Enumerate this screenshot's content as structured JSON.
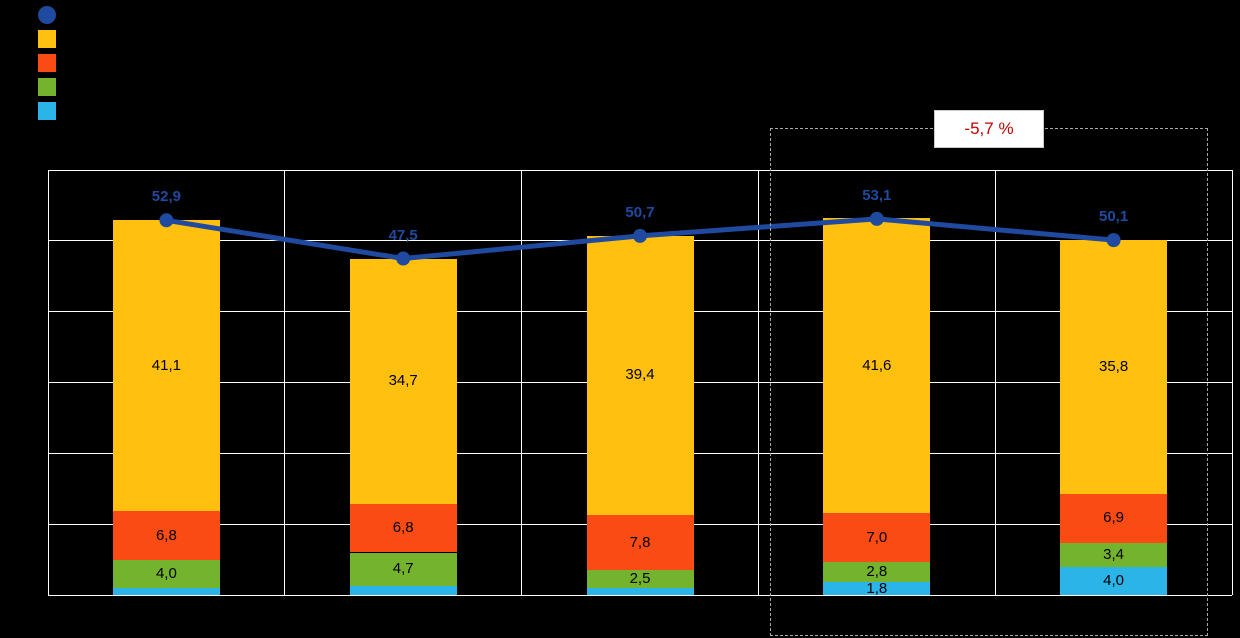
{
  "legend": {
    "items": [
      {
        "name": "total-line",
        "shape": "circle",
        "color": "#1F4A9F"
      },
      {
        "name": "series-amber",
        "shape": "square",
        "color": "#FFC010"
      },
      {
        "name": "series-orange-red",
        "shape": "square",
        "color": "#FB4B14"
      },
      {
        "name": "series-green",
        "shape": "square",
        "color": "#73B32D"
      },
      {
        "name": "series-cyan",
        "shape": "square",
        "color": "#2BB4E8"
      }
    ]
  },
  "annotation": {
    "label": "-5,7 %"
  },
  "chart_data": {
    "type": "bar",
    "subtype": "stacked-bars-with-total-line",
    "categories": [
      "",
      "",
      "",
      "",
      ""
    ],
    "ylim": [
      0,
      60
    ],
    "grid_step": 10,
    "grid": true,
    "series": [
      {
        "name": "cyan",
        "color": "#2BB4E8",
        "values": [
          1.0,
          1.3,
          1.0,
          1.8,
          4.0
        ],
        "labels": [
          "",
          "",
          "",
          "1,8",
          "4,0"
        ]
      },
      {
        "name": "green",
        "color": "#73B32D",
        "values": [
          4.0,
          4.7,
          2.5,
          2.8,
          3.4
        ],
        "labels": [
          "4,0",
          "4,7",
          "2,5",
          "2,8",
          "3,4"
        ]
      },
      {
        "name": "orange-red",
        "color": "#FB4B14",
        "values": [
          6.8,
          6.8,
          7.8,
          7.0,
          6.9
        ],
        "labels": [
          "6,8",
          "6,8",
          "7,8",
          "7,0",
          "6,9"
        ]
      },
      {
        "name": "amber",
        "color": "#FFC010",
        "values": [
          41.1,
          34.7,
          39.4,
          41.6,
          35.8
        ],
        "labels": [
          "41,1",
          "34,7",
          "39,4",
          "41,6",
          "35,8"
        ]
      }
    ],
    "line": {
      "name": "total",
      "color": "#1F4A9F",
      "values": [
        52.9,
        47.5,
        50.7,
        53.1,
        50.1
      ],
      "labels": [
        "52,9",
        "47,5",
        "50,7",
        "53,1",
        "50,1"
      ]
    }
  }
}
